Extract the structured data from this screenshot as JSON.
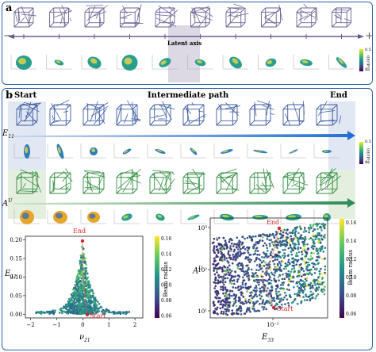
{
  "panel_a": {
    "label": "a",
    "minus": "−",
    "plus": "+",
    "latent_axis_label": "Latent axis",
    "cbar_ticks": [
      "0.5",
      "0"
    ],
    "cbar_label": "E(d)/E0"
  },
  "panel_b": {
    "label": "b",
    "start_label": "Start",
    "intermediate_label": "Intermediate path",
    "end_label": "End",
    "row1_label": "E11",
    "row2_label": "AU",
    "cbar_ticks": [
      "0.5",
      "0"
    ],
    "cbar_label": "E(d)/E0"
  },
  "chart_data": [
    {
      "type": "scatter",
      "xlabel": "ν21",
      "ylabel": "E11",
      "xticks": [
        "−2",
        "−1",
        "0",
        "1",
        "2"
      ],
      "yticks": [
        "0.00",
        "0.05",
        "0.10",
        "0.15",
        "0.20"
      ],
      "xlim": [
        -2.2,
        2.3
      ],
      "ylim": [
        -0.01,
        0.21
      ],
      "annotations": [
        "End",
        "Start"
      ],
      "colorbar": {
        "label": "Beam radius",
        "ticks": [
          "0.16",
          "0.14",
          "0.12",
          "0.10",
          "0.08",
          "0.06"
        ]
      }
    },
    {
      "type": "scatter",
      "xlabel": "E33",
      "ylabel": "AU",
      "xtick_label": "10⁻²",
      "yticks": [
        "10³",
        "10²",
        "10¹"
      ],
      "scale": "log-log",
      "annotations": [
        "End",
        "Start"
      ],
      "colorbar": {
        "label": "Beam radius",
        "ticks": [
          "0.16",
          "0.14",
          "0.12",
          "0.10",
          "0.08",
          "0.06"
        ]
      }
    }
  ]
}
